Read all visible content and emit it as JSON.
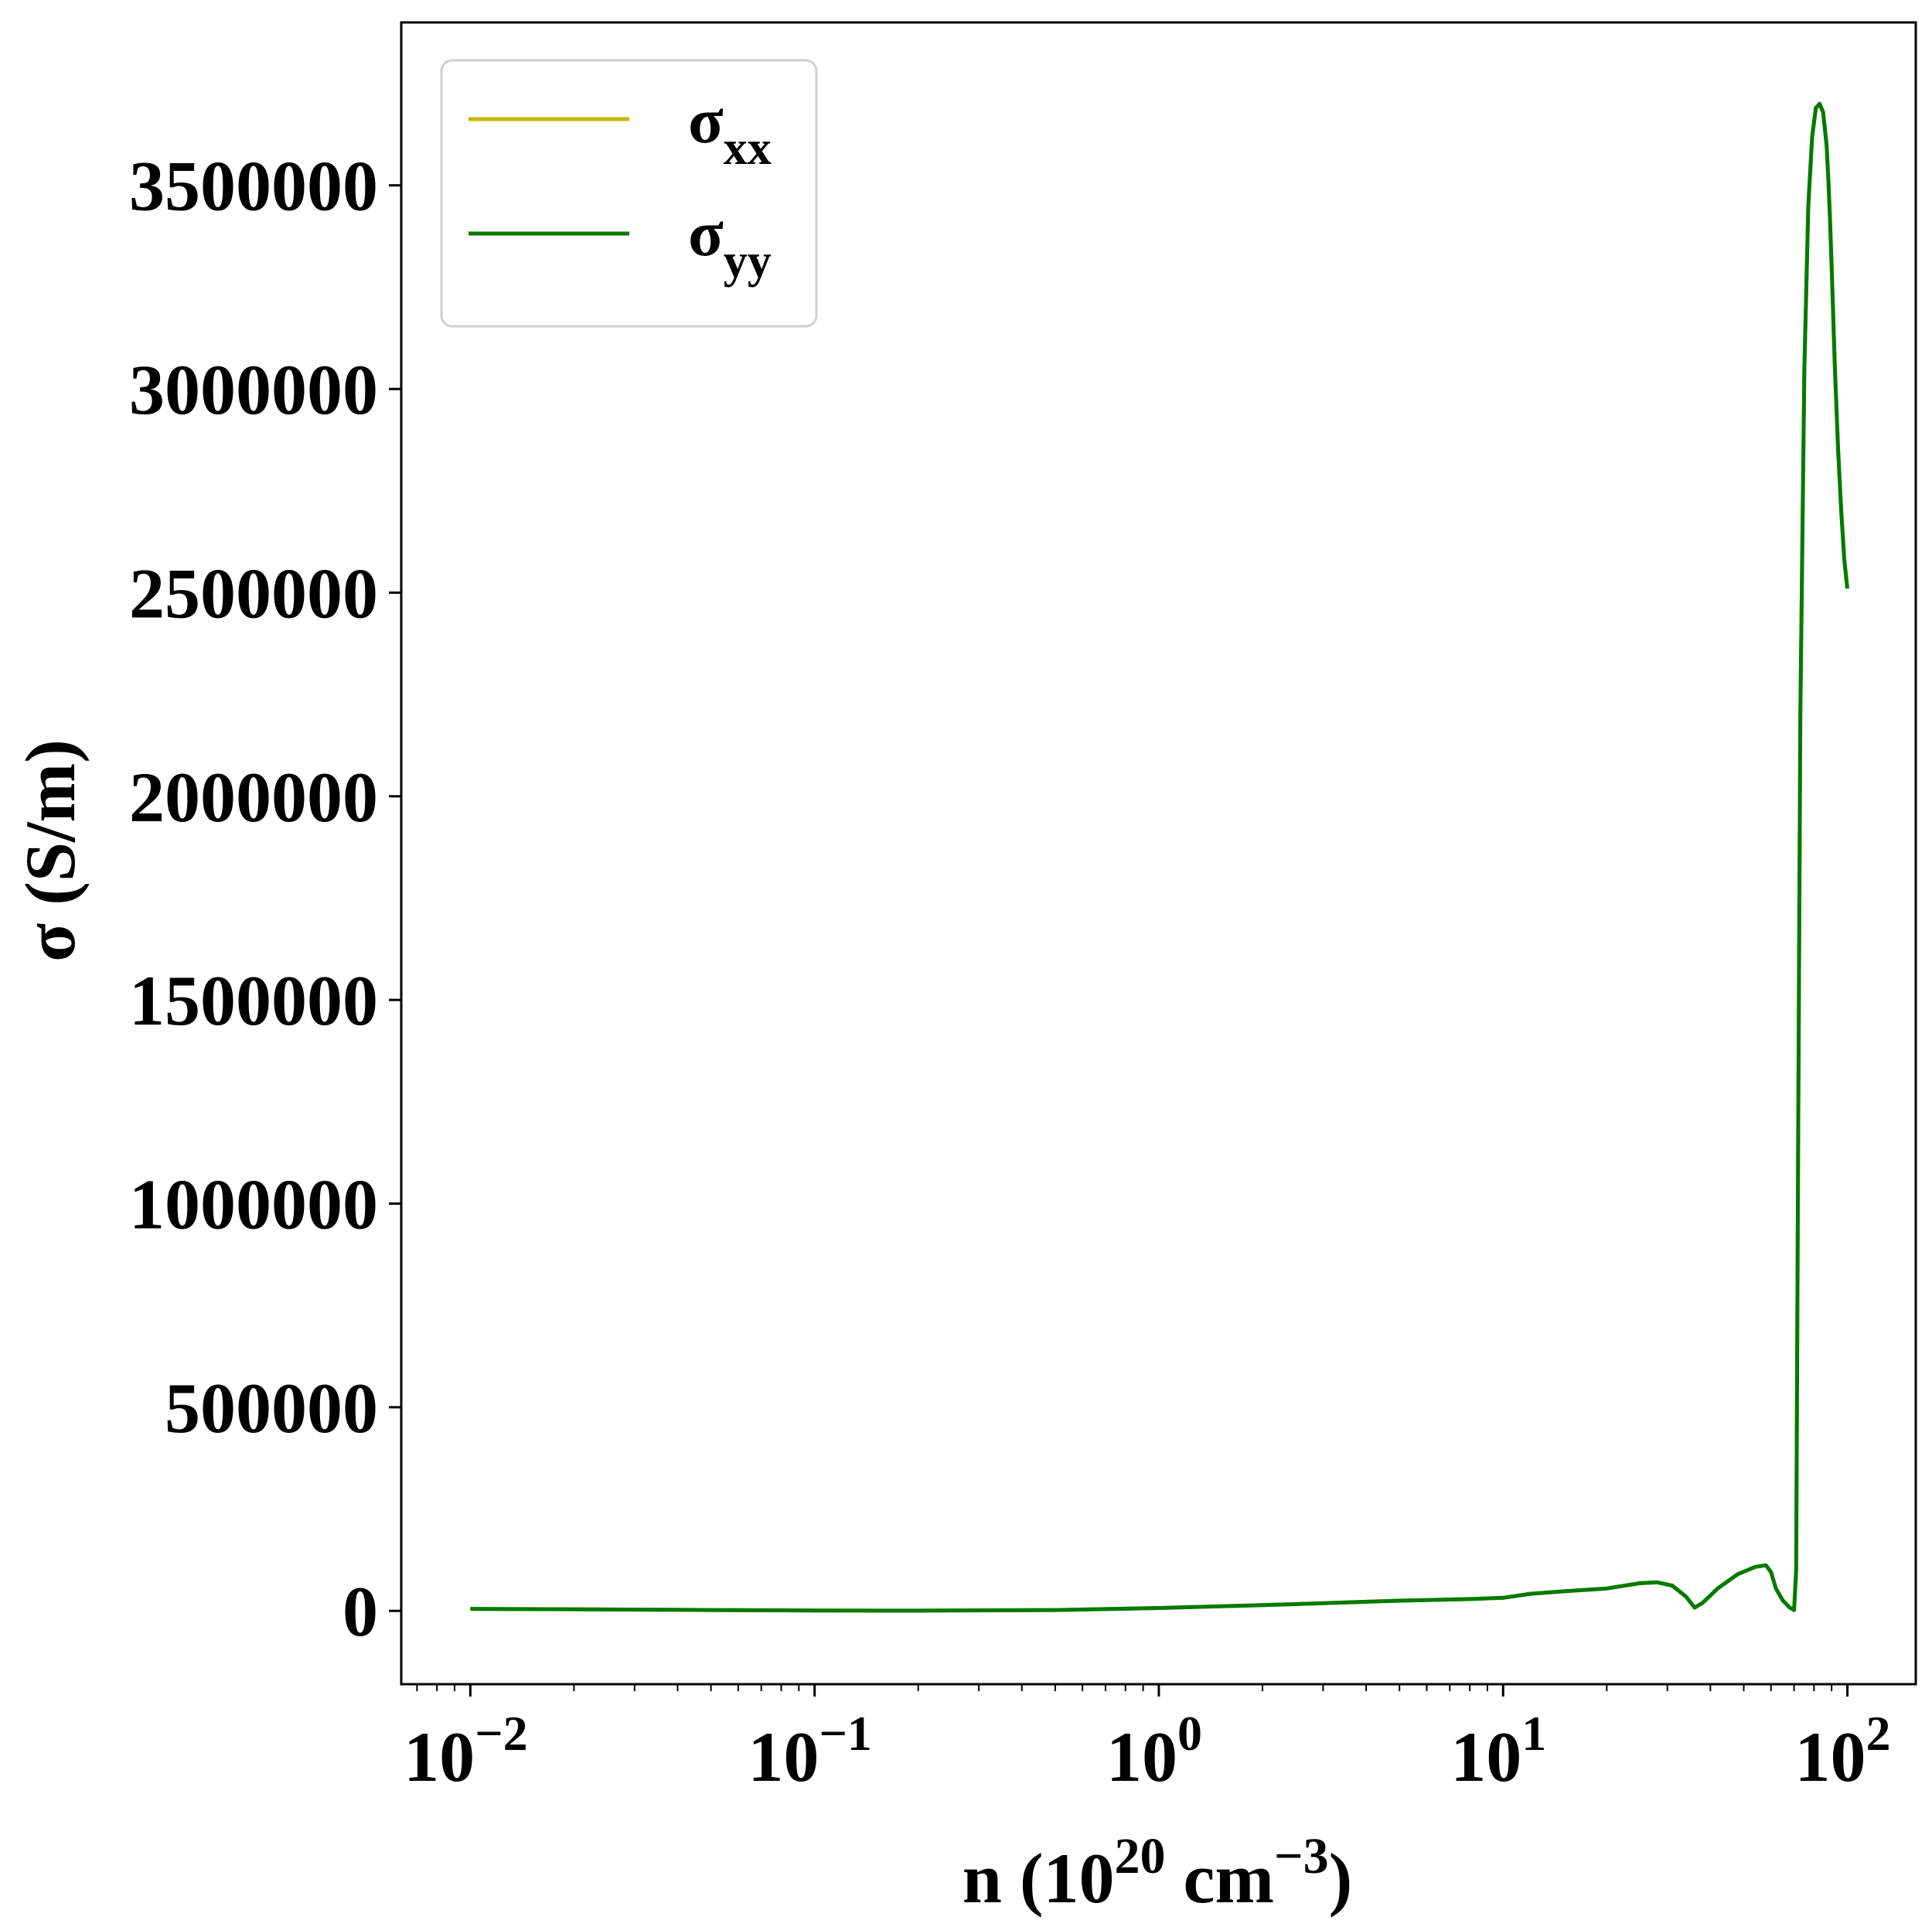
{
  "chart_data": {
    "type": "line",
    "xscale": "log",
    "xlim": [
      0.0063,
      158
    ],
    "ylim": [
      -180000,
      3900000
    ],
    "xlabel": {
      "base": "n (10",
      "exp1": "20",
      "mid": " cm",
      "exp2": "−3",
      "tail": ")"
    },
    "ylabel": "σ (S/m)",
    "xticks": [
      {
        "value": 0.01,
        "base": "10",
        "exp": "−2"
      },
      {
        "value": 0.1,
        "base": "10",
        "exp": "−1"
      },
      {
        "value": 1,
        "base": "10",
        "exp": "0"
      },
      {
        "value": 10,
        "base": "10",
        "exp": "1"
      },
      {
        "value": 100,
        "base": "10",
        "exp": "2"
      }
    ],
    "yticks": [
      {
        "value": 0,
        "label": "0"
      },
      {
        "value": 500000,
        "label": "500000"
      },
      {
        "value": 1000000,
        "label": "1000000"
      },
      {
        "value": 1500000,
        "label": "1500000"
      },
      {
        "value": 2000000,
        "label": "2000000"
      },
      {
        "value": 2500000,
        "label": "2500000"
      },
      {
        "value": 3000000,
        "label": "3000000"
      },
      {
        "value": 3500000,
        "label": "3500000"
      }
    ],
    "legend_position": "top-left",
    "series": [
      {
        "name": "σxx",
        "label_base": "σ",
        "label_sub": "xx",
        "color": "#c8b400",
        "x": [
          0.01,
          0.02,
          0.05,
          0.1,
          0.2,
          0.5,
          1,
          2,
          3,
          5,
          8,
          10,
          12,
          15,
          20,
          25,
          28,
          31,
          34,
          36,
          38,
          42,
          48,
          54,
          58,
          60,
          62,
          65,
          68,
          70,
          71,
          72,
          73,
          75,
          77,
          79,
          81,
          83,
          85,
          87,
          88,
          89,
          90,
          92,
          94,
          96,
          98,
          100
        ],
        "y": [
          5000,
          4000,
          2000,
          1000,
          500,
          2000,
          7000,
          14000,
          19000,
          25000,
          29000,
          32000,
          42000,
          48000,
          55000,
          68000,
          70000,
          62000,
          35000,
          8000,
          20000,
          55000,
          90000,
          108000,
          112000,
          95000,
          55000,
          25000,
          8000,
          2000,
          100000,
          1200000,
          2200000,
          3050000,
          3450000,
          3620000,
          3690000,
          3700000,
          3680000,
          3600000,
          3520000,
          3420000,
          3300000,
          3050000,
          2850000,
          2700000,
          2580000,
          2510000
        ]
      },
      {
        "name": "σyy",
        "label_base": "σ",
        "label_sub": "yy",
        "color": "#007a00",
        "x": [
          0.01,
          0.02,
          0.05,
          0.1,
          0.2,
          0.5,
          1,
          2,
          3,
          5,
          8,
          10,
          12,
          15,
          20,
          25,
          28,
          31,
          34,
          36,
          38,
          42,
          48,
          54,
          58,
          60,
          62,
          65,
          68,
          70,
          71,
          72,
          73,
          75,
          77,
          79,
          81,
          83,
          85,
          87,
          88,
          89,
          90,
          92,
          94,
          96,
          98,
          100
        ],
        "y": [
          5000,
          4000,
          2000,
          1000,
          500,
          2000,
          7000,
          14000,
          19000,
          25000,
          29000,
          32000,
          42000,
          48000,
          55000,
          68000,
          70000,
          62000,
          35000,
          8000,
          20000,
          55000,
          90000,
          108000,
          112000,
          95000,
          55000,
          25000,
          8000,
          2000,
          100000,
          1200000,
          2200000,
          3050000,
          3450000,
          3620000,
          3690000,
          3700000,
          3680000,
          3600000,
          3520000,
          3420000,
          3300000,
          3050000,
          2850000,
          2700000,
          2580000,
          2510000
        ]
      }
    ]
  }
}
